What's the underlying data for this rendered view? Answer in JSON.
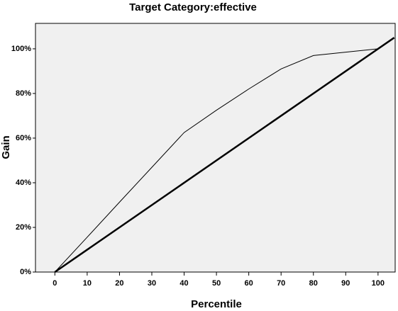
{
  "chart_data": {
    "type": "line",
    "title": "Target Category:effective",
    "xlabel": "Percentile",
    "ylabel": "Gain",
    "series": [
      {
        "color": "#000000",
        "width": 1,
        "x": [
          0,
          10,
          20,
          30,
          40,
          50,
          60,
          70,
          80,
          90,
          100
        ],
        "values": [
          0,
          15.6,
          31.3,
          46.9,
          62.5,
          72.5,
          82,
          91,
          97,
          98.5,
          100
        ]
      },
      {
        "color": "#000000",
        "width": 2.5,
        "x": [
          0,
          105
        ],
        "values": [
          0,
          105
        ]
      }
    ],
    "xlim": [
      -6,
      105.3
    ],
    "ylim": [
      0,
      111.4
    ],
    "xticks": [
      0,
      10,
      20,
      30,
      40,
      50,
      60,
      70,
      80,
      90,
      100
    ],
    "yticks": [
      {
        "value": 0,
        "label": "0%"
      },
      {
        "value": 20,
        "label": "20%"
      },
      {
        "value": 40,
        "label": "40%"
      },
      {
        "value": 60,
        "label": "60%"
      },
      {
        "value": 80,
        "label": "80%"
      },
      {
        "value": 100,
        "label": "100%"
      }
    ],
    "background": "#f0f0f0"
  }
}
